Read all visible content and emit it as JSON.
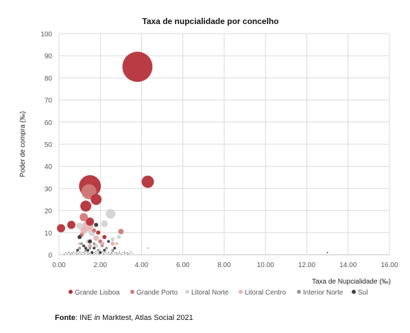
{
  "chart_data": {
    "type": "bubble",
    "title": "Taxa de nupcialidade por concelho",
    "xlabel": "Taxa de Nupcialidade (‰)",
    "ylabel": "Poder de compra (‰)",
    "xlim": [
      0,
      16
    ],
    "ylim": [
      0,
      100
    ],
    "xticks": [
      "0.00",
      "2.00",
      "4.00",
      "6.00",
      "8.00",
      "10.00",
      "12.00",
      "14.00",
      "16.00"
    ],
    "yticks": [
      "0",
      "10",
      "20",
      "30",
      "40",
      "50",
      "60",
      "70",
      "80",
      "90",
      "100"
    ],
    "grid": true,
    "legend_position": "bottom",
    "series": [
      {
        "name": "Grande Lisboa",
        "color": "#b5323a",
        "points": [
          [
            3.8,
            85,
            22
          ],
          [
            1.5,
            31,
            16
          ],
          [
            4.3,
            33,
            9
          ],
          [
            1.8,
            25,
            8
          ],
          [
            1.3,
            22,
            8
          ],
          [
            0.6,
            13.5,
            6
          ],
          [
            0.1,
            12,
            6
          ],
          [
            1.5,
            15,
            6
          ],
          [
            2.2,
            8,
            3
          ],
          [
            1.9,
            10,
            3
          ]
        ]
      },
      {
        "name": "Grande Porto",
        "color": "#d07b7b",
        "points": [
          [
            1.45,
            28.5,
            11
          ],
          [
            1.2,
            17,
            6
          ],
          [
            3.0,
            10.5,
            4
          ],
          [
            1.1,
            9,
            3
          ],
          [
            2.0,
            6,
            3
          ],
          [
            1.7,
            11,
            3
          ]
        ]
      },
      {
        "name": "Litoral Norte",
        "color": "#d4d4d4",
        "points": [
          [
            2.5,
            18.5,
            7
          ],
          [
            2.2,
            14,
            5
          ],
          [
            1.6,
            10,
            5
          ],
          [
            1.0,
            13,
            5
          ],
          [
            2.6,
            7,
            3
          ],
          [
            1.4,
            6,
            3
          ],
          [
            1.8,
            4,
            3
          ],
          [
            2.9,
            8,
            3
          ]
        ]
      },
      {
        "name": "Litoral Centro",
        "color": "#e8b4b4",
        "points": [
          [
            1.4,
            13,
            8
          ],
          [
            1.2,
            11,
            5
          ],
          [
            1.8,
            7.5,
            4
          ],
          [
            2.1,
            5,
            3
          ],
          [
            2.6,
            5,
            3
          ],
          [
            1.5,
            4,
            3
          ],
          [
            2.8,
            5,
            2
          ],
          [
            1.0,
            5,
            2
          ]
        ]
      },
      {
        "name": "Interior Norte",
        "color": "#999999",
        "points": [
          [
            1.1,
            5,
            2
          ],
          [
            1.5,
            3,
            2
          ],
          [
            1.9,
            2,
            2
          ],
          [
            2.3,
            3,
            2
          ],
          [
            1.3,
            2,
            2
          ],
          [
            2.1,
            4,
            2
          ],
          [
            1.7,
            5,
            2
          ],
          [
            4.3,
            3,
            1
          ],
          [
            2.6,
            2,
            2
          ],
          [
            1.0,
            3,
            2
          ]
        ]
      },
      {
        "name": "Sul",
        "color": "#404040",
        "points": [
          [
            1.8,
            13.5,
            3
          ],
          [
            1.0,
            8,
            3
          ],
          [
            1.5,
            6,
            3
          ],
          [
            2.4,
            6,
            2
          ],
          [
            1.2,
            4,
            2
          ],
          [
            1.7,
            3,
            2
          ],
          [
            2.2,
            2,
            2
          ],
          [
            1.4,
            2,
            2
          ],
          [
            2.0,
            1,
            2
          ],
          [
            0.9,
            2,
            2
          ],
          [
            1.6,
            1,
            2
          ],
          [
            2.7,
            3,
            2
          ],
          [
            13.0,
            1,
            1
          ],
          [
            1.3,
            3,
            2
          ]
        ]
      }
    ]
  },
  "legend": {
    "items": [
      {
        "label": "Grande Lisboa",
        "color": "#b5323a"
      },
      {
        "label": "Grande Porto",
        "color": "#d07b7b"
      },
      {
        "label": "Litoral Norte",
        "color": "#d4d4d4"
      },
      {
        "label": "Litoral Centro",
        "color": "#e8b4b4"
      },
      {
        "label": "Interior Norte",
        "color": "#999999"
      },
      {
        "label": "Sul",
        "color": "#404040"
      }
    ]
  },
  "source": {
    "label": "Fonte",
    "text_before": ": INE ",
    "italic": "in",
    "text_after": " Marktest, Atlas Social 2021"
  }
}
